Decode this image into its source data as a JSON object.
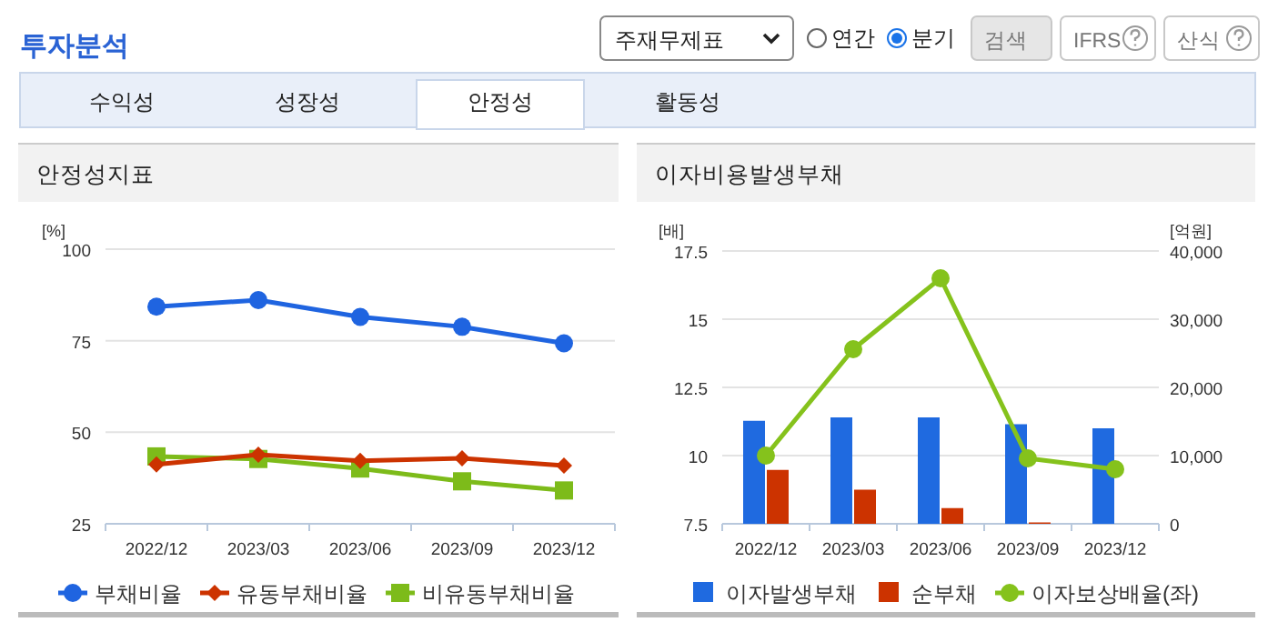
{
  "chart_data": [
    {
      "type": "other",
      "title": "투자분석",
      "annotations": [
        "주재무제표",
        "연간",
        "분기",
        "검색",
        "IFRS",
        "산식",
        "수익성",
        "성장성",
        "안정성",
        "활동성"
      ]
    },
    {
      "type": "line",
      "title": "안정성지표",
      "ylabel": "[%]",
      "categories": [
        "2022/12",
        "2023/03",
        "2023/06",
        "2023/09",
        "2023/12"
      ],
      "ylim": [
        25,
        100
      ],
      "yticks": [
        25,
        50,
        75,
        100
      ],
      "grid": "y",
      "legend": "bottom",
      "series": [
        {
          "name": "부채비율",
          "color": "#1f64e0",
          "marker": "circle",
          "values": [
            84.3,
            86.1,
            81.5,
            78.8,
            74.3
          ]
        },
        {
          "name": "유동부채비율",
          "color": "#cc3300",
          "marker": "diamond",
          "values": [
            41.2,
            43.9,
            42.2,
            42.9,
            40.9
          ]
        },
        {
          "name": "비유동부채비율",
          "color": "#7dbb1a",
          "marker": "square",
          "values": [
            43.4,
            42.7,
            40.1,
            36.6,
            34.1
          ]
        }
      ]
    },
    {
      "type": "bar",
      "title": "이자비용발생부채",
      "ylabel": "[배]",
      "y2label": "[억원]",
      "categories": [
        "2022/12",
        "2023/03",
        "2023/06",
        "2023/09",
        "2023/12"
      ],
      "ylim": [
        7.5,
        17.5
      ],
      "yticks": [
        7.5,
        10,
        12.5,
        15,
        17.5
      ],
      "y2lim": [
        0,
        40000
      ],
      "y2ticks": [
        0,
        {
          "value": 10000,
          "label": "10,000"
        },
        {
          "value": 20000,
          "label": "20,000"
        },
        {
          "value": 30000,
          "label": "30,000"
        },
        {
          "value": 40000,
          "label": "40,000"
        }
      ],
      "grid": "y",
      "legend": "bottom",
      "series": [
        {
          "name": "이자발생부채",
          "color": "#1f6ae0",
          "axis": "y2",
          "values": [
            15100,
            15600,
            15600,
            14600,
            14000
          ]
        },
        {
          "name": "순부채",
          "color": "#cc3300",
          "axis": "y2",
          "values": [
            7900,
            5000,
            2300,
            200,
            0
          ]
        },
        {
          "name": "이자보상배율(좌)",
          "type": "line",
          "color": "#85c21c",
          "marker": "circle",
          "values": [
            10.0,
            13.9,
            16.5,
            9.9,
            9.5
          ]
        }
      ]
    }
  ]
}
